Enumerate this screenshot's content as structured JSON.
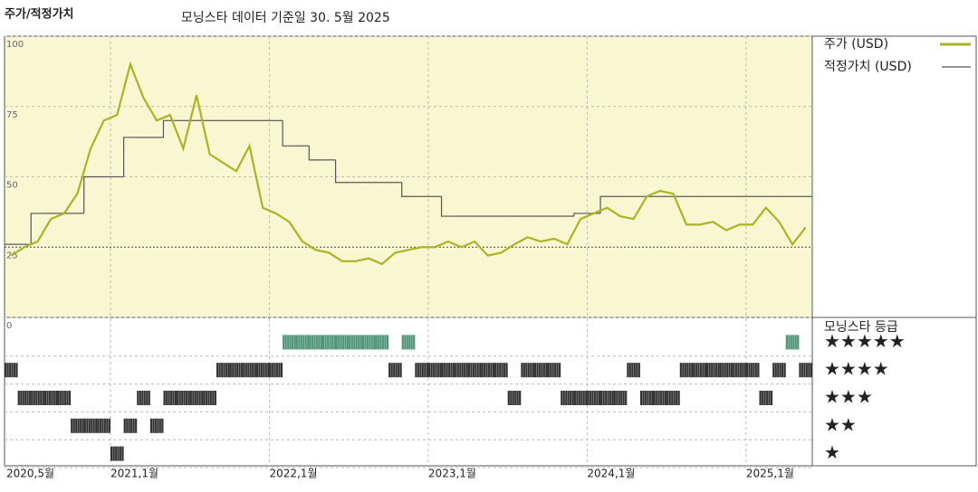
{
  "chart_data": {
    "type": "line",
    "title": "주가/적정가치",
    "subtitle": "모닝스타 데이터 기준일 30. 5월 2025",
    "categories": [
      "2020,5월",
      null,
      null,
      null,
      null,
      null,
      null,
      null,
      "2021,1월",
      null,
      null,
      null,
      null,
      null,
      null,
      null,
      null,
      null,
      null,
      null,
      "2022,1월",
      null,
      null,
      null,
      null,
      null,
      null,
      null,
      null,
      null,
      null,
      null,
      "2023,1월",
      null,
      null,
      null,
      null,
      null,
      null,
      null,
      null,
      null,
      null,
      null,
      "2024,1월",
      null,
      null,
      null,
      null,
      null,
      null,
      null,
      null,
      null,
      null,
      null,
      "2025,1월",
      null,
      null,
      null,
      null
    ],
    "series": [
      {
        "name": "주가 (USD)",
        "color": "#a9b520",
        "style": "line",
        "values": [
          22,
          25,
          27,
          35,
          37,
          44,
          60,
          70,
          72,
          90,
          78,
          70,
          72,
          60,
          79,
          58,
          55,
          52,
          61,
          39,
          37,
          34,
          27,
          24,
          23,
          20,
          20,
          21,
          19,
          23,
          24,
          25,
          25,
          27,
          25,
          27,
          22,
          23,
          26,
          28.5,
          27,
          28,
          26,
          35,
          37,
          39,
          36,
          35,
          43,
          45,
          44,
          33,
          33,
          34,
          31,
          33,
          33,
          39,
          34,
          26,
          32
        ]
      },
      {
        "name": "적정가치 (USD)",
        "color": "#555555",
        "style": "step",
        "values": [
          26,
          26,
          37,
          37,
          37,
          37,
          50,
          50,
          50,
          64,
          64,
          64,
          70,
          70,
          70,
          70,
          70,
          70,
          70,
          70,
          70,
          61,
          61,
          56,
          56,
          48,
          48,
          48,
          48,
          48,
          43,
          43,
          43,
          36,
          36,
          36,
          36,
          36,
          36,
          36,
          36,
          36,
          36,
          37,
          37,
          43,
          43,
          43,
          43,
          43,
          43,
          43,
          43,
          43,
          43,
          43,
          43,
          43,
          43,
          43,
          43
        ]
      }
    ],
    "ylim": [
      0,
      100
    ],
    "yticks": [
      0,
      25,
      50,
      75,
      100
    ],
    "grid": true,
    "ratings": {
      "title": "모닝스타 등급",
      "levels": [
        {
          "value": 5,
          "label": "★★★★★",
          "color": "#4e9478"
        },
        {
          "value": 4,
          "label": "★★★★",
          "color": "#333333"
        },
        {
          "value": 3,
          "label": "★★★",
          "color": "#333333"
        },
        {
          "value": 2,
          "label": "★★",
          "color": "#333333"
        },
        {
          "value": 1,
          "label": "★",
          "color": "#333333"
        }
      ],
      "values": [
        4,
        3,
        3,
        3,
        3,
        2,
        2,
        2,
        1,
        2,
        3,
        2,
        3,
        3,
        3,
        3,
        4,
        4,
        4,
        4,
        4,
        5,
        5,
        5,
        5,
        5,
        5,
        5,
        5,
        4,
        5,
        4,
        4,
        4,
        4,
        4,
        4,
        4,
        3,
        4,
        4,
        4,
        3,
        3,
        3,
        3,
        3,
        4,
        3,
        3,
        3,
        4,
        4,
        4,
        4,
        4,
        4,
        3,
        4,
        5,
        4
      ]
    }
  }
}
